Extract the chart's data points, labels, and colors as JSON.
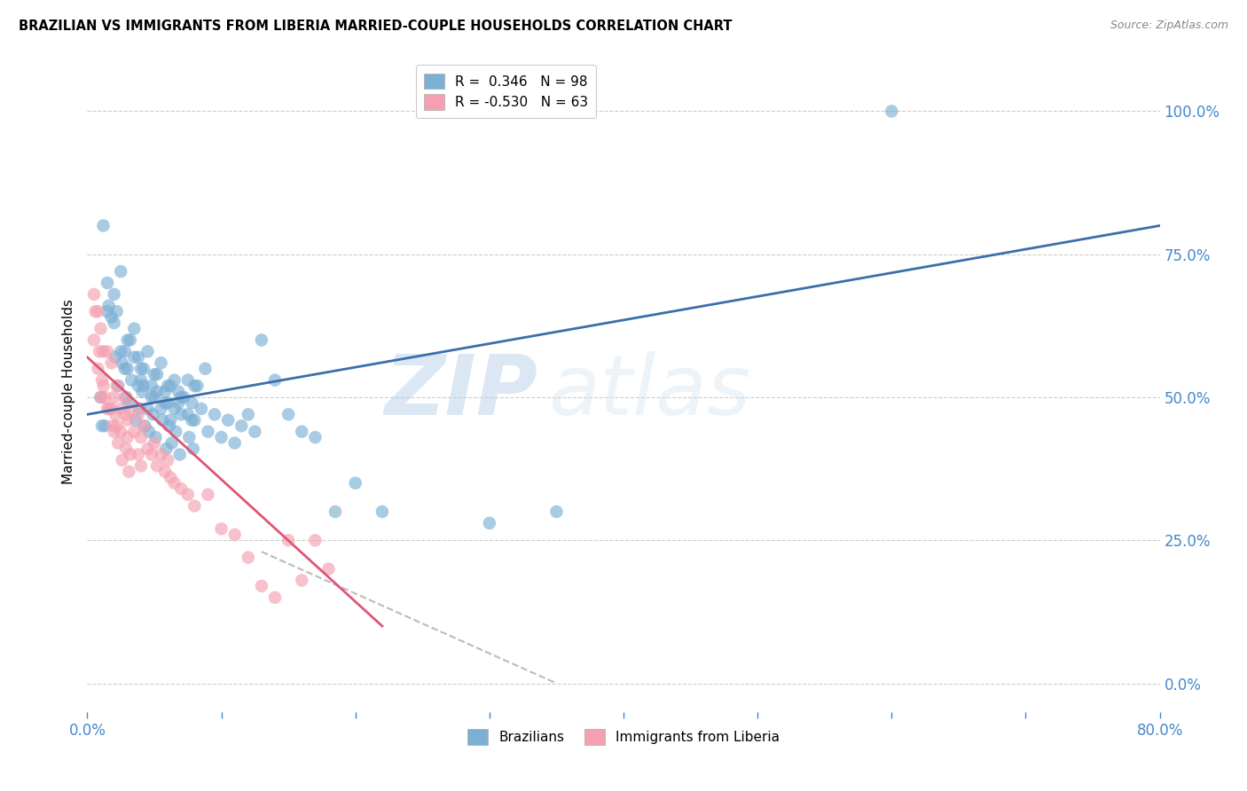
{
  "title": "BRAZILIAN VS IMMIGRANTS FROM LIBERIA MARRIED-COUPLE HOUSEHOLDS CORRELATION CHART",
  "source": "Source: ZipAtlas.com",
  "ylabel": "Married-couple Households",
  "ytick_labels": [
    "0.0%",
    "25.0%",
    "50.0%",
    "75.0%",
    "100.0%"
  ],
  "ytick_values": [
    0,
    25,
    50,
    75,
    100
  ],
  "xtick_positions": [
    0,
    10,
    20,
    30,
    40,
    50,
    60,
    70,
    80
  ],
  "xlim": [
    0,
    80
  ],
  "ylim": [
    -5,
    107
  ],
  "legend_r1": "R =  0.346   N = 98",
  "legend_r2": "R = -0.530   N = 63",
  "blue_color": "#7BAFD4",
  "pink_color": "#F4A0B0",
  "blue_line_color": "#3B6EAA",
  "pink_line_color": "#E05575",
  "dashed_line_color": "#BBBBBB",
  "watermark_zip": "ZIP",
  "watermark_atlas": "atlas",
  "blue_scatter_x": [
    1.0,
    1.2,
    1.5,
    1.5,
    2.0,
    2.0,
    2.2,
    2.5,
    2.5,
    2.8,
    2.8,
    3.0,
    3.0,
    3.2,
    3.5,
    3.5,
    3.8,
    3.8,
    4.0,
    4.0,
    4.2,
    4.2,
    4.5,
    4.5,
    4.8,
    4.8,
    5.0,
    5.0,
    5.2,
    5.2,
    5.5,
    5.5,
    5.8,
    5.8,
    6.0,
    6.0,
    6.2,
    6.2,
    6.5,
    6.5,
    6.8,
    6.8,
    7.0,
    7.0,
    7.2,
    7.5,
    7.5,
    7.8,
    7.8,
    8.0,
    8.0,
    8.2,
    8.5,
    8.8,
    9.0,
    9.5,
    10.0,
    10.5,
    11.0,
    11.5,
    12.0,
    12.5,
    13.0,
    14.0,
    15.0,
    16.0,
    17.0,
    18.5,
    20.0,
    22.0,
    30.0,
    35.0,
    60.0,
    1.1,
    1.3,
    1.6,
    1.8,
    2.1,
    2.3,
    2.6,
    2.9,
    3.1,
    3.3,
    3.6,
    3.9,
    4.1,
    4.3,
    4.6,
    4.9,
    5.1,
    5.6,
    5.9,
    6.1,
    6.3,
    6.6,
    6.9,
    7.6,
    7.9
  ],
  "blue_scatter_y": [
    50,
    80,
    65,
    70,
    68,
    63,
    65,
    72,
    58,
    58,
    55,
    55,
    60,
    60,
    62,
    57,
    57,
    52,
    53,
    55,
    55,
    52,
    58,
    48,
    52,
    50,
    50,
    54,
    54,
    51,
    56,
    48,
    51,
    49,
    49,
    52,
    52,
    46,
    48,
    53,
    51,
    49,
    47,
    50,
    50,
    53,
    47,
    49,
    46,
    46,
    52,
    52,
    48,
    55,
    44,
    47,
    43,
    46,
    42,
    45,
    47,
    44,
    60,
    53,
    47,
    44,
    43,
    30,
    35,
    30,
    28,
    30,
    100,
    45,
    45,
    66,
    64,
    57,
    52,
    56,
    50,
    49,
    53,
    46,
    48,
    51,
    45,
    44,
    47,
    43,
    46,
    41,
    45,
    42,
    44,
    40,
    43,
    41
  ],
  "pink_scatter_x": [
    0.5,
    0.5,
    0.8,
    0.8,
    1.0,
    1.0,
    1.2,
    1.2,
    1.5,
    1.5,
    1.8,
    1.8,
    2.0,
    2.0,
    2.2,
    2.2,
    2.5,
    2.5,
    2.8,
    2.8,
    3.0,
    3.0,
    3.2,
    3.2,
    3.5,
    3.8,
    3.8,
    4.0,
    4.0,
    4.2,
    4.5,
    4.8,
    5.0,
    5.2,
    5.5,
    5.8,
    6.0,
    6.2,
    6.5,
    7.0,
    7.5,
    8.0,
    9.0,
    10.0,
    11.0,
    12.0,
    13.0,
    14.0,
    15.0,
    16.0,
    17.0,
    18.0,
    0.6,
    0.9,
    1.1,
    1.3,
    1.6,
    1.9,
    2.1,
    2.3,
    2.6,
    2.9,
    3.1
  ],
  "pink_scatter_y": [
    68,
    60,
    65,
    55,
    62,
    50,
    58,
    52,
    58,
    48,
    56,
    48,
    50,
    44,
    52,
    45,
    48,
    44,
    50,
    47,
    46,
    43,
    48,
    40,
    44,
    47,
    40,
    43,
    38,
    45,
    41,
    40,
    42,
    38,
    40,
    37,
    39,
    36,
    35,
    34,
    33,
    31,
    33,
    27,
    26,
    22,
    17,
    15,
    25,
    18,
    25,
    20,
    65,
    58,
    53,
    50,
    48,
    45,
    47,
    42,
    39,
    41,
    37
  ],
  "blue_trend_x": [
    0,
    80
  ],
  "blue_trend_y": [
    47,
    80
  ],
  "pink_trend_x": [
    0,
    22
  ],
  "pink_trend_y": [
    57,
    10
  ],
  "dashed_trend_x": [
    13,
    35
  ],
  "dashed_trend_y": [
    23,
    0
  ]
}
